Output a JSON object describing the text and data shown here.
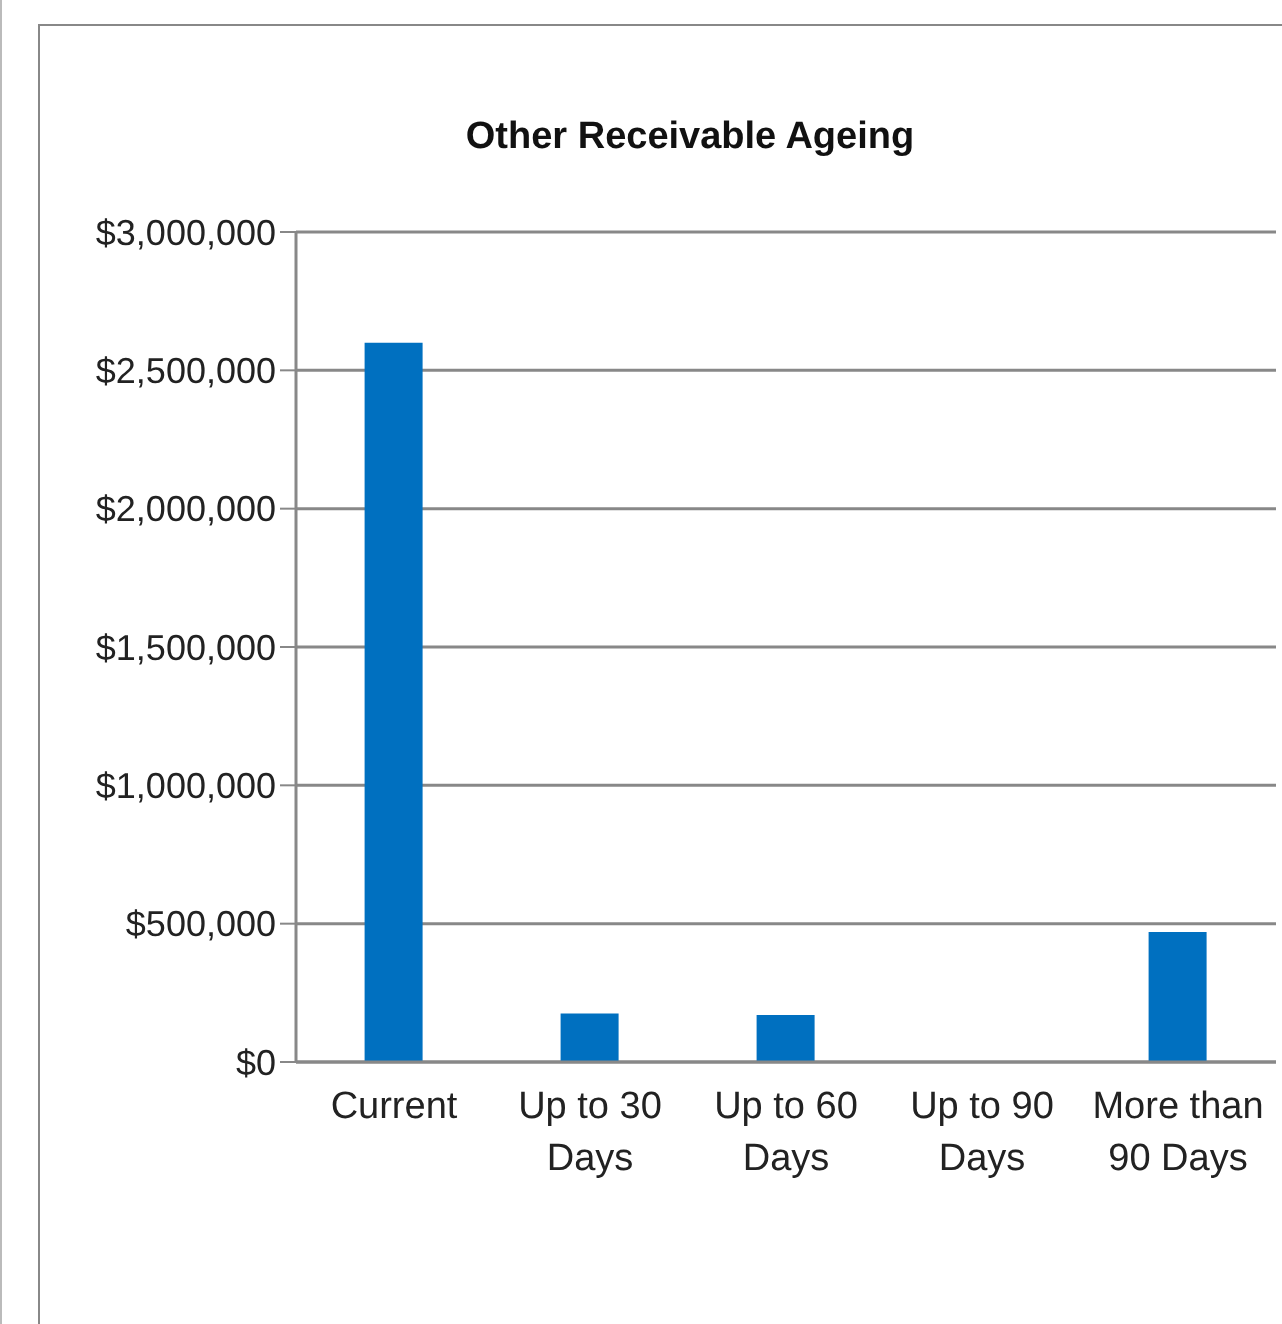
{
  "chart_data": {
    "type": "bar",
    "title": "Other Receivable Ageing",
    "categories": [
      "Current",
      "Up to 30 Days",
      "Up to 60 Days",
      "Up to 90 Days",
      "More than 90 Days"
    ],
    "values": [
      2600000,
      175000,
      170000,
      0,
      470000
    ],
    "color": "#0070c0",
    "ylim": [
      0,
      3000000
    ],
    "yticks": [
      {
        "value": 0,
        "label": "$0"
      },
      {
        "value": 500000,
        "label": "$500,000"
      },
      {
        "value": 1000000,
        "label": "$1,000,000"
      },
      {
        "value": 1500000,
        "label": "$1,500,000"
      },
      {
        "value": 2000000,
        "label": "$2,000,000"
      },
      {
        "value": 2500000,
        "label": "$2,500,000"
      },
      {
        "value": 3000000,
        "label": "$3,000,000"
      }
    ],
    "grid": "y"
  }
}
